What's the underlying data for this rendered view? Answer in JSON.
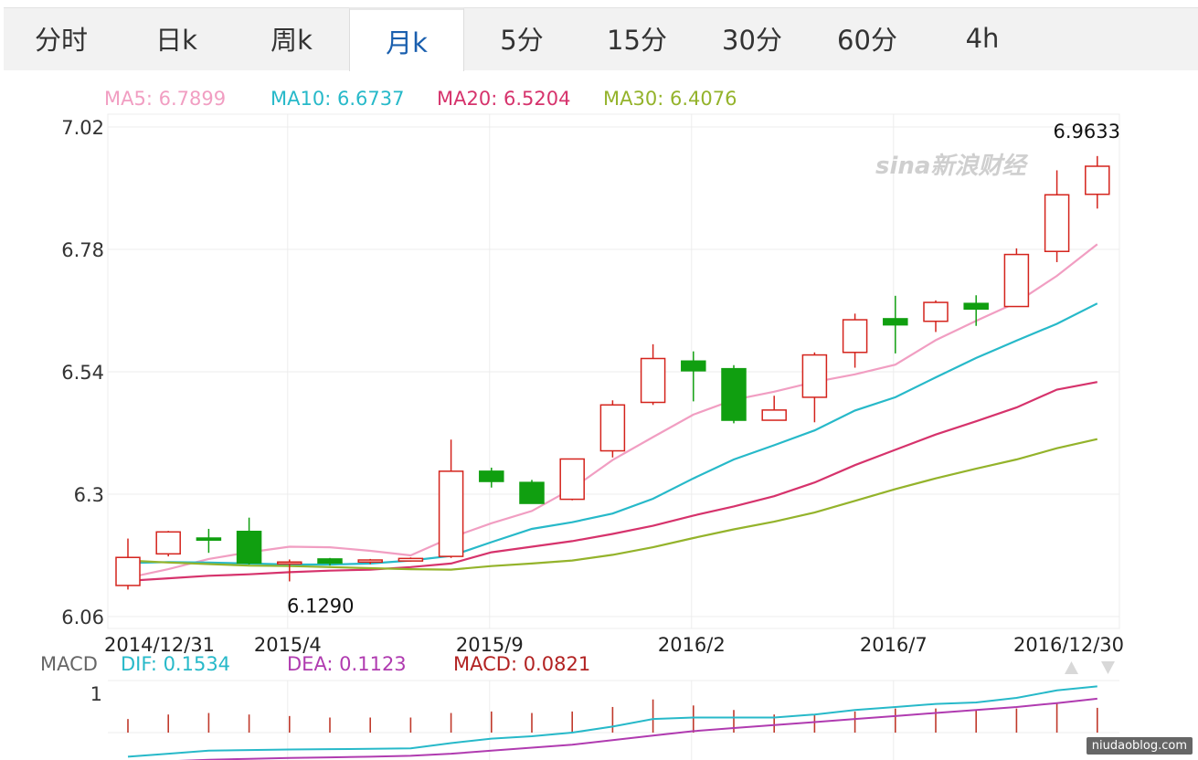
{
  "tabs": [
    {
      "label": "分时",
      "active": false
    },
    {
      "label": "日k",
      "active": false
    },
    {
      "label": "周k",
      "active": false
    },
    {
      "label": "月k",
      "active": true
    },
    {
      "label": "5分",
      "active": false
    },
    {
      "label": "15分",
      "active": false
    },
    {
      "label": "30分",
      "active": false
    },
    {
      "label": "60分",
      "active": false
    },
    {
      "label": "4h",
      "active": false
    }
  ],
  "ma_legend": [
    {
      "text": "MA5: 6.7899",
      "color": "#f19ec2"
    },
    {
      "text": "MA10: 6.6737",
      "color": "#27b9c9"
    },
    {
      "text": "MA20: 6.5204",
      "color": "#d6336c"
    },
    {
      "text": "MA30: 6.4076",
      "color": "#94b32b"
    }
  ],
  "macd_legend": {
    "label": "MACD",
    "dif": "DIF: 0.1534",
    "dea": "DEA: 0.1123",
    "macd": "MACD: 0.0821",
    "colors": {
      "label": "#666666",
      "dif": "#27b9c9",
      "dea": "#b03bb0",
      "macd": "#b22222"
    }
  },
  "brand_logo": "sina新浪财经",
  "watermark": "niudaoblog.com",
  "chart_data": {
    "type": "candlestick",
    "y_ticks": [
      "7.02",
      "6.78",
      "6.54",
      "6.3",
      "6.06"
    ],
    "ylim": [
      6.06,
      7.02
    ],
    "x_tick_labels": [
      {
        "label": "2014/12/31",
        "index": 0
      },
      {
        "label": "2015/4",
        "index": 4
      },
      {
        "label": "2015/9",
        "index": 9
      },
      {
        "label": "2016/2",
        "index": 14
      },
      {
        "label": "2016/7",
        "index": 19
      },
      {
        "label": "2016/12/30",
        "index": 24
      }
    ],
    "annotations": [
      {
        "text": "6.9633",
        "index": 24,
        "value": 6.9633
      },
      {
        "text": "6.1290",
        "index": 4,
        "value": 6.129
      }
    ],
    "candles": [
      {
        "open": 6.121,
        "close": 6.176,
        "high": 6.213,
        "low": 6.113
      },
      {
        "open": 6.183,
        "close": 6.226,
        "high": 6.228,
        "low": 6.178
      },
      {
        "open": 6.214,
        "close": 6.21,
        "high": 6.232,
        "low": 6.185
      },
      {
        "open": 6.227,
        "close": 6.165,
        "high": 6.254,
        "low": 6.162
      },
      {
        "open": 6.167,
        "close": 6.167,
        "high": 6.172,
        "low": 6.129
      },
      {
        "open": 6.173,
        "close": 6.165,
        "high": 6.175,
        "low": 6.16
      },
      {
        "open": 6.167,
        "close": 6.171,
        "high": 6.173,
        "low": 6.163
      },
      {
        "open": 6.169,
        "close": 6.174,
        "high": 6.176,
        "low": 6.168
      },
      {
        "open": 6.178,
        "close": 6.345,
        "high": 6.407,
        "low": 6.175
      },
      {
        "open": 6.345,
        "close": 6.325,
        "high": 6.352,
        "low": 6.313
      },
      {
        "open": 6.323,
        "close": 6.282,
        "high": 6.328,
        "low": 6.282
      },
      {
        "open": 6.29,
        "close": 6.369,
        "high": 6.369,
        "low": 6.288
      },
      {
        "open": 6.385,
        "close": 6.475,
        "high": 6.484,
        "low": 6.372
      },
      {
        "open": 6.48,
        "close": 6.566,
        "high": 6.594,
        "low": 6.475
      },
      {
        "open": 6.561,
        "close": 6.542,
        "high": 6.58,
        "low": 6.482
      },
      {
        "open": 6.546,
        "close": 6.445,
        "high": 6.553,
        "low": 6.439
      },
      {
        "open": 6.445,
        "close": 6.465,
        "high": 6.493,
        "low": 6.445
      },
      {
        "open": 6.49,
        "close": 6.573,
        "high": 6.578,
        "low": 6.441
      },
      {
        "open": 6.578,
        "close": 6.642,
        "high": 6.654,
        "low": 6.548
      },
      {
        "open": 6.644,
        "close": 6.632,
        "high": 6.689,
        "low": 6.576
      },
      {
        "open": 6.639,
        "close": 6.676,
        "high": 6.68,
        "low": 6.618
      },
      {
        "open": 6.674,
        "close": 6.663,
        "high": 6.69,
        "low": 6.63
      },
      {
        "open": 6.668,
        "close": 6.77,
        "high": 6.782,
        "low": 6.668
      },
      {
        "open": 6.776,
        "close": 6.887,
        "high": 6.935,
        "low": 6.755
      },
      {
        "open": 6.888,
        "close": 6.943,
        "high": 6.963,
        "low": 6.86
      }
    ],
    "ma": [
      {
        "name": "MA5",
        "color": "#f19ec2",
        "values": [
          6.136,
          6.153,
          6.173,
          6.186,
          6.197,
          6.196,
          6.189,
          6.18,
          6.215,
          6.243,
          6.267,
          6.311,
          6.367,
          6.412,
          6.456,
          6.485,
          6.501,
          6.52,
          6.535,
          6.554,
          6.602,
          6.64,
          6.676,
          6.728,
          6.79
        ]
      },
      {
        "name": "MA10",
        "color": "#27b9c9",
        "values": [
          6.165,
          6.167,
          6.166,
          6.164,
          6.162,
          6.162,
          6.164,
          6.17,
          6.179,
          6.206,
          6.232,
          6.245,
          6.262,
          6.291,
          6.331,
          6.368,
          6.396,
          6.425,
          6.464,
          6.49,
          6.529,
          6.567,
          6.601,
          6.634,
          6.674
        ]
      },
      {
        "name": "MA20",
        "color": "#d6336c",
        "values": [
          6.13,
          6.135,
          6.14,
          6.143,
          6.147,
          6.15,
          6.152,
          6.157,
          6.164,
          6.186,
          6.197,
          6.208,
          6.222,
          6.238,
          6.258,
          6.276,
          6.296,
          6.323,
          6.357,
          6.387,
          6.417,
          6.443,
          6.47,
          6.505,
          6.52
        ]
      },
      {
        "name": "MA30",
        "color": "#94b32b",
        "values": [
          6.17,
          6.166,
          6.163,
          6.16,
          6.159,
          6.157,
          6.155,
          6.153,
          6.152,
          6.159,
          6.164,
          6.17,
          6.181,
          6.196,
          6.214,
          6.231,
          6.246,
          6.264,
          6.287,
          6.31,
          6.331,
          6.35,
          6.368,
          6.39,
          6.408
        ]
      }
    ],
    "macd": {
      "y_tick": "1",
      "dif": [
        -0.08,
        -0.07,
        -0.06,
        -0.058,
        -0.056,
        -0.055,
        -0.054,
        -0.052,
        -0.035,
        -0.02,
        -0.012,
        0.0,
        0.02,
        0.045,
        0.05,
        0.05,
        0.05,
        0.06,
        0.075,
        0.085,
        0.095,
        0.1,
        0.115,
        0.14,
        0.1534
      ],
      "dea": [
        -0.1,
        -0.095,
        -0.09,
        -0.087,
        -0.084,
        -0.082,
        -0.08,
        -0.077,
        -0.07,
        -0.06,
        -0.05,
        -0.04,
        -0.025,
        -0.01,
        0.005,
        0.015,
        0.025,
        0.035,
        0.045,
        0.055,
        0.065,
        0.075,
        0.085,
        0.098,
        0.1123
      ],
      "hist": [
        0.045,
        0.06,
        0.065,
        0.06,
        0.055,
        0.05,
        0.05,
        0.05,
        0.065,
        0.07,
        0.065,
        0.07,
        0.085,
        0.11,
        0.09,
        0.075,
        0.06,
        0.06,
        0.07,
        0.08,
        0.08,
        0.075,
        0.08,
        0.1,
        0.0821
      ]
    }
  }
}
